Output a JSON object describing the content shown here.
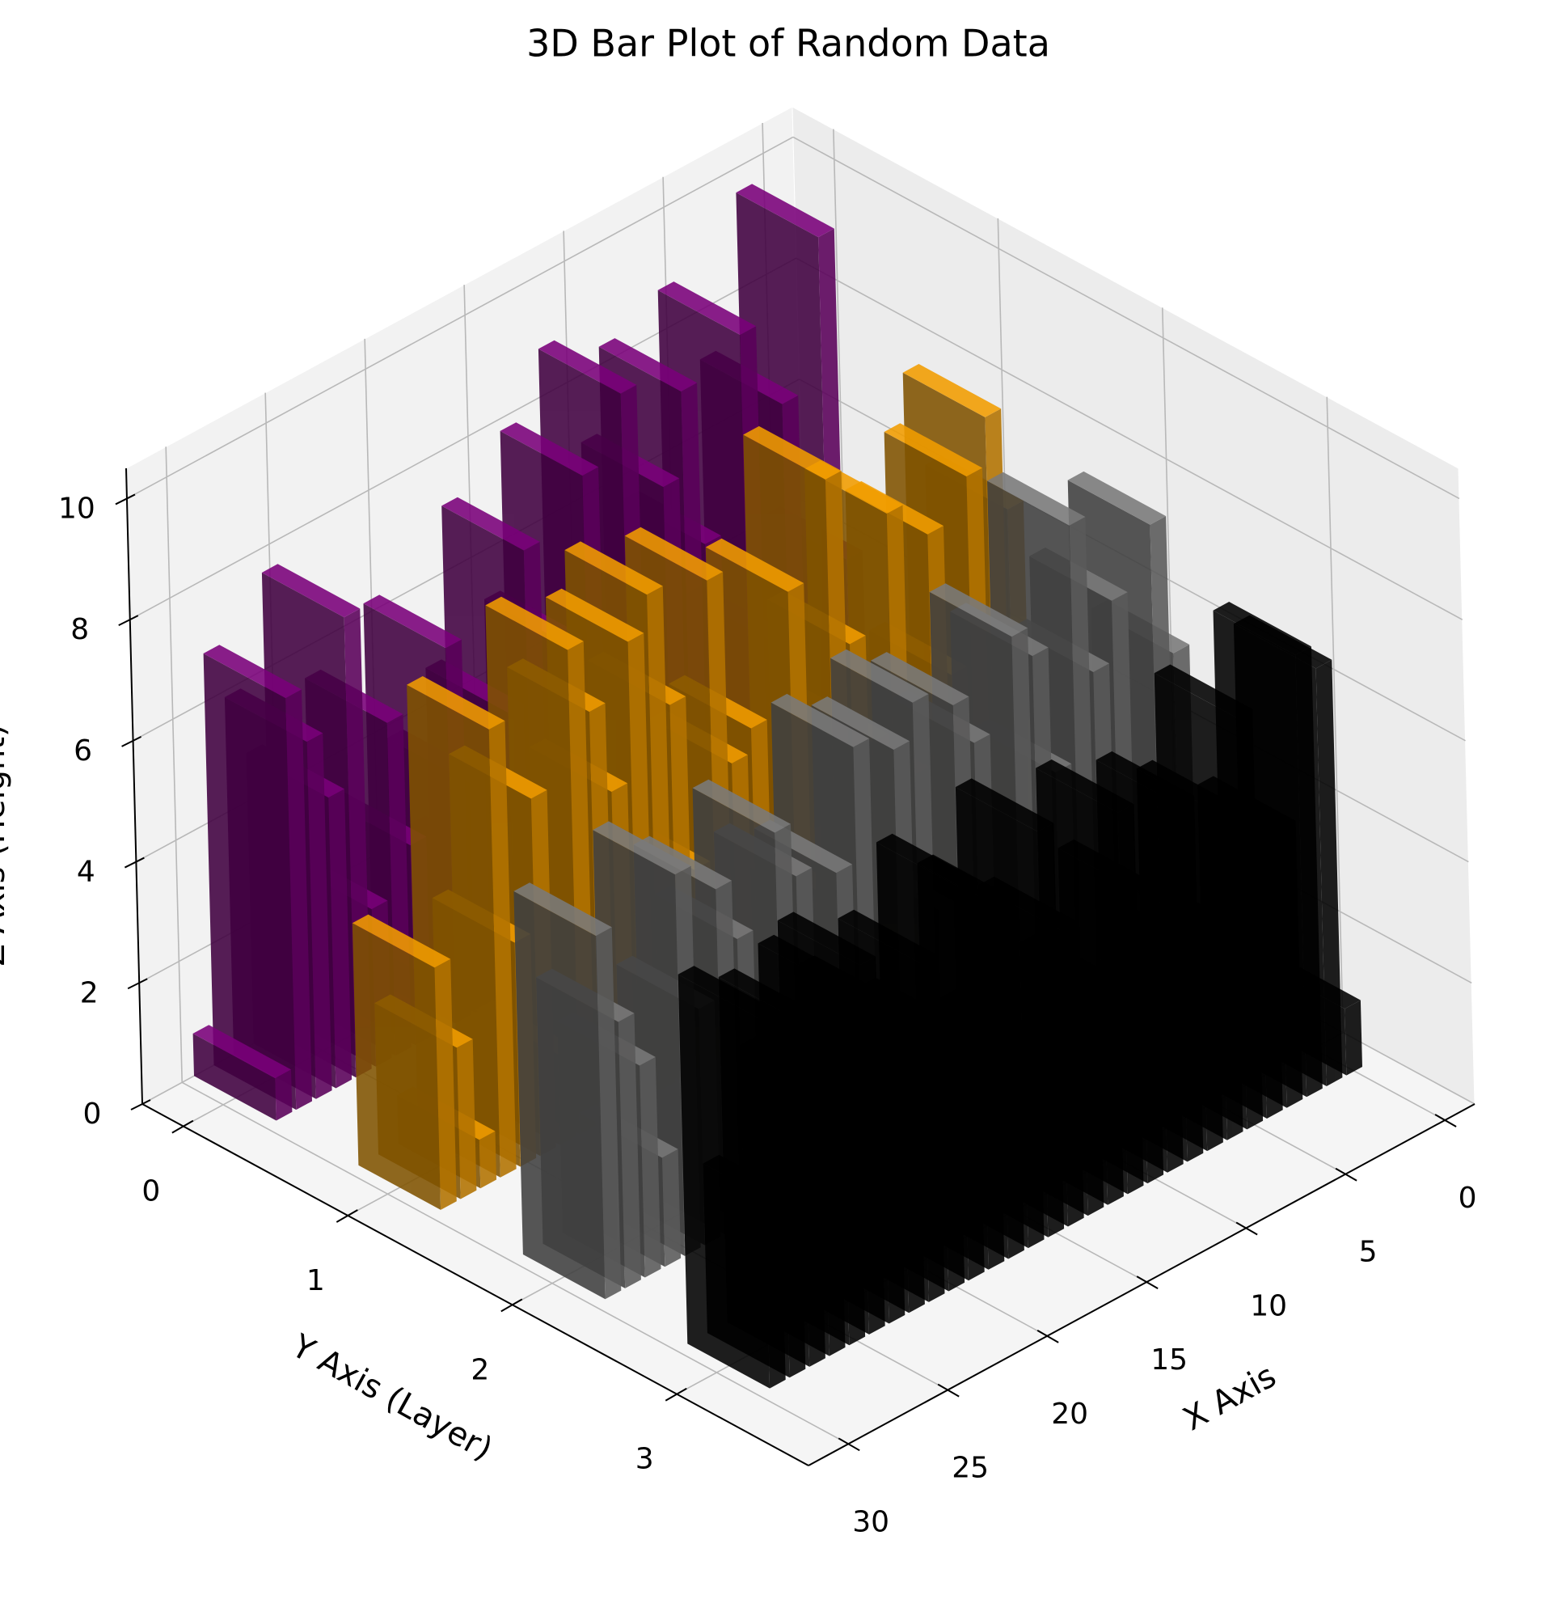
{
  "chart_data": {
    "type": "bar3d",
    "title": "3D Bar Plot of Random Data",
    "xlabel": "X Axis",
    "ylabel": "Y Axis (Layer)",
    "zlabel": "Z Axis (Height)",
    "x": [
      0,
      1,
      2,
      3,
      4,
      5,
      6,
      7,
      8,
      9,
      10,
      11,
      12,
      13,
      14,
      15,
      16,
      17,
      18,
      19,
      20,
      21,
      22,
      23,
      24,
      25,
      26,
      27,
      28,
      29
    ],
    "series": [
      {
        "y": 0,
        "color": "#800080",
        "values": [
          4.1,
          9.6,
          2.3,
          7.2,
          3.5,
          8.7,
          1.8,
          5.6,
          8.3,
          6.9,
          2.7,
          8.8,
          3.1,
          7.8,
          5.2,
          1.4,
          7.1,
          4.6,
          2.2,
          3.8,
          6.2,
          0.9,
          3.3,
          5.5,
          2.6,
          7.6,
          4.8,
          5.9,
          6.8,
          0.7
        ]
      },
      {
        "y": 1,
        "color": "#ffa500",
        "values": [
          6.4,
          8.1,
          7.3,
          4.2,
          6.7,
          2.9,
          7.4,
          3.8,
          5.6,
          8.5,
          1.9,
          7.0,
          2.4,
          5.1,
          4.7,
          7.9,
          3.3,
          6.2,
          8.2,
          7.6,
          5.3,
          6.8,
          8.0,
          1.5,
          5.9,
          3.7,
          7.4,
          0.8,
          2.5,
          4.0
        ]
      },
      {
        "y": 2,
        "color": "#808080",
        "values": [
          5.5,
          7.8,
          1.6,
          6.9,
          5.9,
          8.5,
          4.6,
          6.7,
          7.2,
          2.8,
          5.8,
          6.6,
          3.4,
          7.0,
          6.4,
          2.1,
          6.8,
          4.9,
          1.3,
          5.2,
          6.1,
          0.6,
          4.7,
          5.7,
          3.9,
          6.3,
          1.8,
          3.5,
          4.4,
          6.0
        ]
      },
      {
        "y": 3,
        "color": "#000000",
        "values": [
          1.1,
          6.9,
          7.3,
          4.6,
          2.7,
          6.8,
          5.4,
          3.0,
          5.9,
          1.7,
          4.8,
          6.3,
          3.6,
          2.2,
          4.9,
          6.7,
          3.4,
          5.8,
          2.6,
          6.5,
          4.3,
          5.6,
          1.9,
          5.2,
          6.1,
          5.9,
          4.4,
          5.7,
          2.8,
          6.1
        ]
      }
    ],
    "xlim": [
      -1.5,
      32
    ],
    "ylim": [
      -0.25,
      3.8
    ],
    "zlim": [
      0,
      10.5
    ],
    "xticks": [
      0,
      5,
      10,
      15,
      20,
      25,
      30
    ],
    "yticks": [
      0,
      1,
      2,
      3
    ],
    "zticks": [
      0,
      2,
      4,
      6,
      8,
      10
    ],
    "grid": true
  }
}
